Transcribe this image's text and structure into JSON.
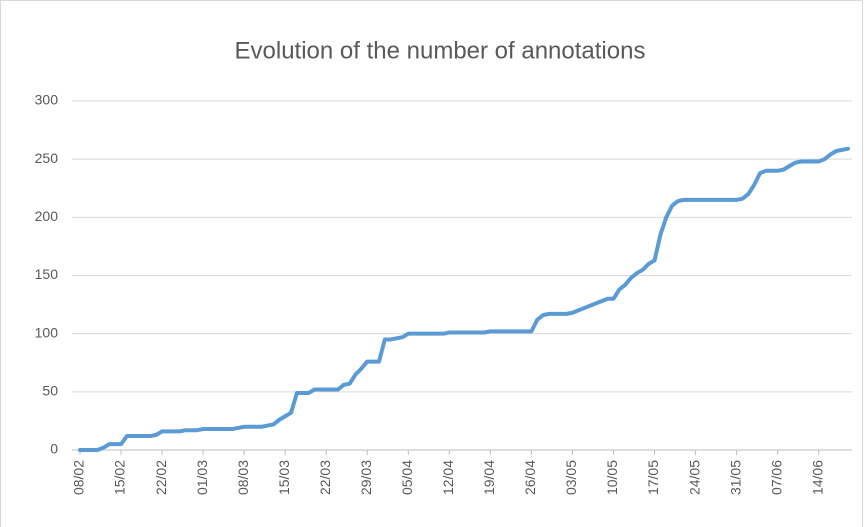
{
  "chart_data": {
    "type": "line",
    "title": "Evolution of the number of annotations",
    "categories": [
      "08/02",
      null,
      null,
      null,
      null,
      null,
      null,
      "15/02",
      null,
      null,
      null,
      null,
      null,
      null,
      "22/02",
      null,
      null,
      null,
      null,
      null,
      null,
      "01/03",
      null,
      null,
      null,
      null,
      null,
      null,
      "08/03",
      null,
      null,
      null,
      null,
      null,
      null,
      "15/03",
      null,
      null,
      null,
      null,
      null,
      null,
      "22/03",
      null,
      null,
      null,
      null,
      null,
      null,
      "29/03",
      null,
      null,
      null,
      null,
      null,
      null,
      "05/04",
      null,
      null,
      null,
      null,
      null,
      null,
      "12/04",
      null,
      null,
      null,
      null,
      null,
      null,
      "19/04",
      null,
      null,
      null,
      null,
      null,
      null,
      "26/04",
      null,
      null,
      null,
      null,
      null,
      null,
      "03/05",
      null,
      null,
      null,
      null,
      null,
      null,
      "10/05",
      null,
      null,
      null,
      null,
      null,
      null,
      "17/05",
      null,
      null,
      null,
      null,
      null,
      null,
      "24/05",
      null,
      null,
      null,
      null,
      null,
      null,
      "31/05",
      null,
      null,
      null,
      null,
      null,
      null,
      "07/06",
      null,
      null,
      null,
      null,
      null,
      null,
      "14/06",
      null,
      null,
      null,
      null,
      null
    ],
    "values": [
      0,
      0,
      0,
      0,
      2,
      5,
      5,
      5,
      12,
      12,
      12,
      12,
      12,
      13,
      16,
      16,
      16,
      16,
      17,
      17,
      17,
      18,
      18,
      18,
      18,
      18,
      18,
      19,
      20,
      20,
      20,
      20,
      21,
      22,
      26,
      29,
      32,
      49,
      49,
      49,
      52,
      52,
      52,
      52,
      52,
      56,
      57,
      65,
      70,
      76,
      76,
      76,
      95,
      95,
      96,
      97,
      100,
      100,
      100,
      100,
      100,
      100,
      100,
      101,
      101,
      101,
      101,
      101,
      101,
      101,
      102,
      102,
      102,
      102,
      102,
      102,
      102,
      102,
      112,
      116,
      117,
      117,
      117,
      117,
      118,
      120,
      122,
      124,
      126,
      128,
      130,
      130,
      138,
      142,
      148,
      152,
      155,
      160,
      163,
      185,
      200,
      210,
      214,
      215,
      215,
      215,
      215,
      215,
      215,
      215,
      215,
      215,
      215,
      216,
      220,
      228,
      238,
      240,
      240,
      240,
      241,
      244,
      247,
      248,
      248,
      248,
      248,
      250,
      254,
      257,
      258,
      259
    ],
    "color": "#5b9bd5",
    "ylim": [
      0,
      300
    ],
    "yticks": [
      0,
      50,
      100,
      150,
      200,
      250,
      300
    ],
    "grid": true
  }
}
